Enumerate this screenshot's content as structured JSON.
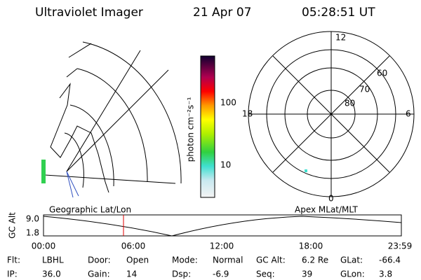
{
  "header": {
    "title": "Ultraviolet Imager",
    "date": "21 Apr 07",
    "time": "05:28:51 UT"
  },
  "colorbar": {
    "label": "photon cm⁻²s⁻¹",
    "ticks": [
      "100",
      "10"
    ]
  },
  "polar": {
    "mlt_labels": [
      "12",
      "6",
      "0",
      "18"
    ],
    "mlat_labels": [
      "60",
      "70",
      "80"
    ]
  },
  "timeline": {
    "left_title": "Geographic Lat/Lon",
    "right_title": "Apex MLat/MLT",
    "ylabel": "GC Alt",
    "yticks": [
      "9.0",
      "1.8"
    ],
    "xticks": [
      "00:00",
      "06:00",
      "12:00",
      "18:00",
      "23:59"
    ]
  },
  "status": [
    [
      {
        "label": "Flt:",
        "value": "LBHL"
      },
      {
        "label": "Door:",
        "value": "Open"
      },
      {
        "label": "Mode:",
        "value": "Normal"
      },
      {
        "label": "GC Alt:",
        "value": "6.2 Re"
      },
      {
        "label": "GLat:",
        "value": "-66.4"
      }
    ],
    [
      {
        "label": "IP:",
        "value": "36.0"
      },
      {
        "label": "Gain:",
        "value": "14"
      },
      {
        "label": "Dsp:",
        "value": "-6.9"
      },
      {
        "label": "Seq:",
        "value": "39"
      },
      {
        "label": "GLon:",
        "value": "3.8"
      }
    ]
  ]
}
